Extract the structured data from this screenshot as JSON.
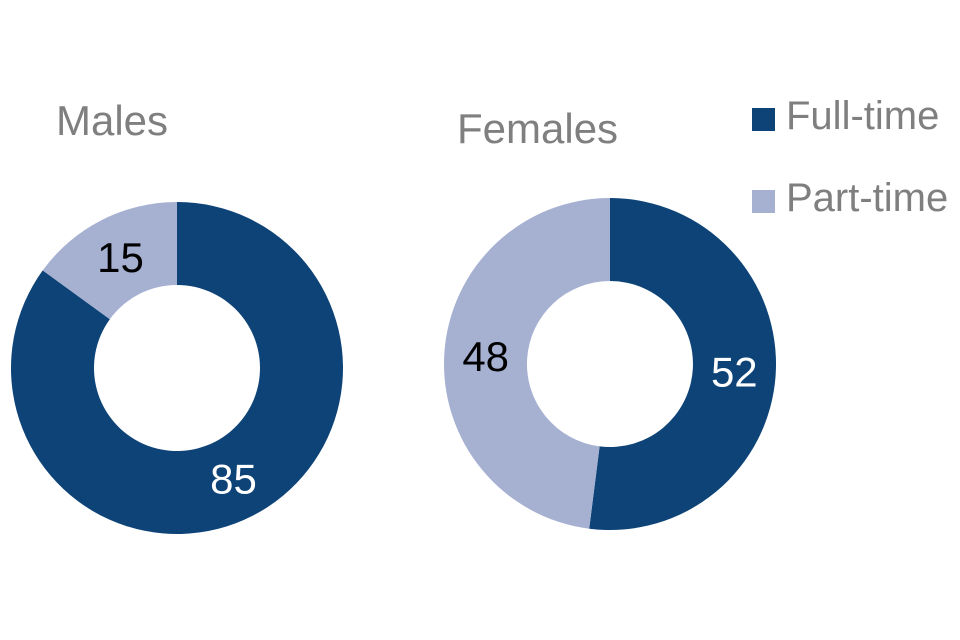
{
  "page": {
    "background_color": "#ffffff",
    "title_text_color": "#7f7f7f",
    "legend_text_color": "#7f7f7f"
  },
  "legend": {
    "position": "right",
    "items": [
      {
        "label": "Full-time",
        "color": "#0d4377"
      },
      {
        "label": "Part-time",
        "color": "#a6b1d2"
      }
    ]
  },
  "chart_data": [
    {
      "type": "pie",
      "subtype": "donut",
      "title": "Males",
      "categories": [
        "Full-time",
        "Part-time"
      ],
      "values": [
        85,
        15
      ],
      "colors": [
        "#0d4377",
        "#a6b1d2"
      ],
      "data_labels": [
        "85",
        "15"
      ],
      "data_label_colors": [
        "#ffffff",
        "#000000"
      ],
      "start_angle_deg": 0,
      "direction": "clockwise",
      "inner_radius_ratio": 0.5,
      "legend_position": "right",
      "grid": false
    },
    {
      "type": "pie",
      "subtype": "donut",
      "title": "Females",
      "categories": [
        "Full-time",
        "Part-time"
      ],
      "values": [
        52,
        48
      ],
      "colors": [
        "#0d4377",
        "#a6b1d2"
      ],
      "data_labels": [
        "52",
        "48"
      ],
      "data_label_colors": [
        "#ffffff",
        "#000000"
      ],
      "start_angle_deg": 0,
      "direction": "clockwise",
      "inner_radius_ratio": 0.5,
      "legend_position": "right",
      "grid": false
    }
  ]
}
